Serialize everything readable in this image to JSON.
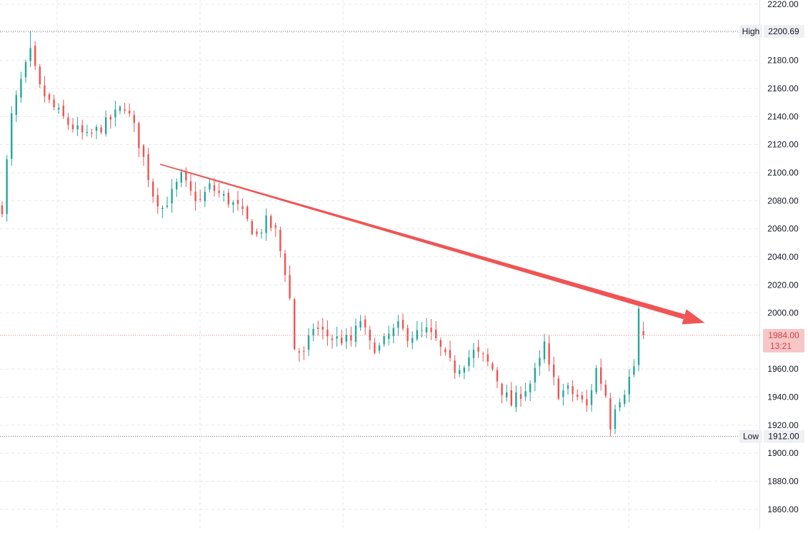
{
  "colors": {
    "up": "#26a69a",
    "down": "#ef5350",
    "trend_arrow": "#f05454",
    "grid": "#e4e6ec",
    "hl_line": "#6b6b6b",
    "current_price_line": "#f27d7d",
    "current_price_badge": "#f7c6c6",
    "current_price_text": "#d2424a",
    "axis_text": "#131722",
    "axis_border": "#e0e3eb",
    "hl_badge_bg": "#eef0f4"
  },
  "price_axis": {
    "ticks": [
      "2220.00",
      "2200.00",
      "2180.00",
      "2160.00",
      "2140.00",
      "2120.00",
      "2100.00",
      "2080.00",
      "2060.00",
      "2040.00",
      "2020.00",
      "2000.00",
      "1960.00",
      "1940.00",
      "1920.00",
      "1900.00",
      "1880.00",
      "1860.00"
    ],
    "high_label": "High",
    "high_value": "2200.69",
    "low_label": "Low",
    "low_value": "1912.00",
    "current_price": "1984.00",
    "countdown": "13:21"
  },
  "chart_data": {
    "type": "candlestick",
    "title": "",
    "xlabel": "",
    "ylabel": "",
    "ylim": [
      1850,
      2222
    ],
    "bar_count": 136,
    "high": 2200.69,
    "low": 1912.0,
    "last": 1984.0,
    "close_path": [
      [
        0,
        2075
      ],
      [
        2,
        2140
      ],
      [
        4,
        2165
      ],
      [
        6,
        2185
      ],
      [
        8,
        2160
      ],
      [
        10,
        2150
      ],
      [
        14,
        2135
      ],
      [
        18,
        2125
      ],
      [
        22,
        2135
      ],
      [
        26,
        2148
      ],
      [
        28,
        2132
      ],
      [
        30,
        2110
      ],
      [
        32,
        2085
      ],
      [
        34,
        2075
      ],
      [
        36,
        2085
      ],
      [
        38,
        2097
      ],
      [
        40,
        2085
      ],
      [
        42,
        2080
      ],
      [
        44,
        2090
      ],
      [
        48,
        2080
      ],
      [
        50,
        2075
      ],
      [
        54,
        2055
      ],
      [
        56,
        2065
      ],
      [
        58,
        2058
      ],
      [
        60,
        2030
      ],
      [
        61,
        2010
      ],
      [
        62,
        1975
      ],
      [
        64,
        1970
      ],
      [
        66,
        1990
      ],
      [
        70,
        1982
      ],
      [
        74,
        1980
      ],
      [
        76,
        1995
      ],
      [
        78,
        1977
      ],
      [
        80,
        1975
      ],
      [
        82,
        1984
      ],
      [
        84,
        1990
      ],
      [
        86,
        1984
      ],
      [
        88,
        1985
      ],
      [
        90,
        1987
      ],
      [
        92,
        1980
      ],
      [
        94,
        1968
      ],
      [
        96,
        1960
      ],
      [
        98,
        1965
      ],
      [
        100,
        1972
      ],
      [
        102,
        1968
      ],
      [
        104,
        1960
      ],
      [
        106,
        1945
      ],
      [
        108,
        1935
      ],
      [
        110,
        1943
      ],
      [
        112,
        1950
      ],
      [
        114,
        1965
      ],
      [
        115,
        1978
      ],
      [
        116,
        1960
      ],
      [
        118,
        1943
      ],
      [
        120,
        1945
      ],
      [
        122,
        1940
      ],
      [
        124,
        1933
      ],
      [
        126,
        1960
      ],
      [
        128,
        1942
      ],
      [
        129,
        1920
      ],
      [
        130,
        1935
      ],
      [
        132,
        1945
      ],
      [
        134,
        1962
      ],
      [
        135,
        2002
      ],
      [
        136,
        1984
      ]
    ],
    "trendline": {
      "from": {
        "bar": 33.5,
        "price": 2106
      },
      "to": {
        "bar": 149,
        "price": 1993
      }
    },
    "grid": true,
    "legend": "none"
  }
}
